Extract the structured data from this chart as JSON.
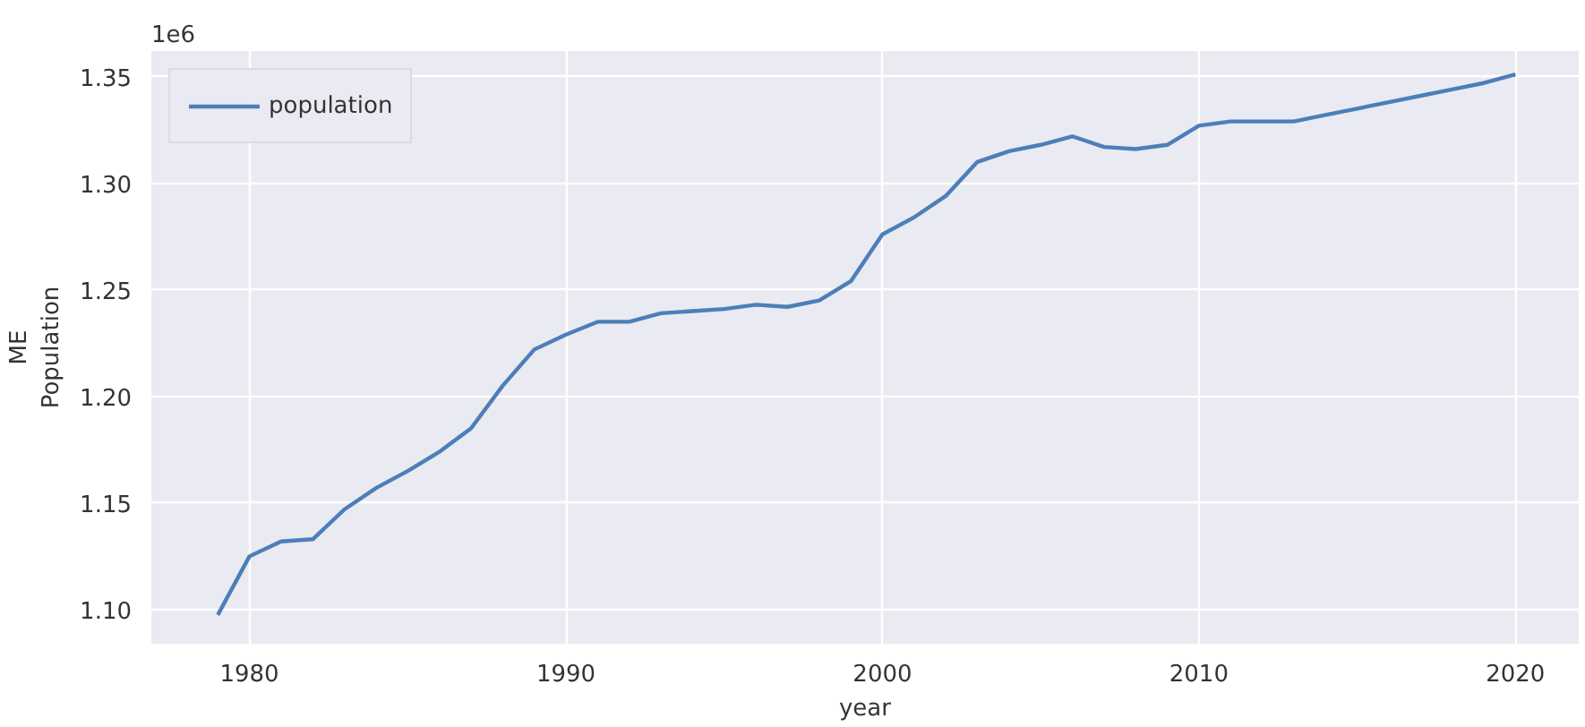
{
  "chart_data": {
    "type": "line",
    "xlabel": "year",
    "ylabel": "ME\nPopulation",
    "annotations": [
      "1e6"
    ],
    "x": [
      1979,
      1980,
      1981,
      1982,
      1983,
      1984,
      1985,
      1986,
      1987,
      1988,
      1989,
      1990,
      1991,
      1992,
      1993,
      1994,
      1995,
      1996,
      1997,
      1998,
      1999,
      2000,
      2001,
      2002,
      2003,
      2004,
      2005,
      2006,
      2007,
      2008,
      2009,
      2010,
      2011,
      2012,
      2013,
      2014,
      2015,
      2016,
      2017,
      2018,
      2019,
      2020
    ],
    "series": [
      {
        "name": "population",
        "color": "#4c7fb8",
        "values": [
          1.0975,
          1.125,
          1.132,
          1.133,
          1.147,
          1.157,
          1.165,
          1.174,
          1.185,
          1.205,
          1.222,
          1.229,
          1.235,
          1.235,
          1.239,
          1.24,
          1.241,
          1.243,
          1.242,
          1.245,
          1.254,
          1.276,
          1.284,
          1.294,
          1.31,
          1.315,
          1.318,
          1.322,
          1.317,
          1.316,
          1.318,
          1.327,
          1.329,
          1.329,
          1.329,
          1.332,
          1.335,
          1.338,
          1.341,
          1.344,
          1.347,
          1.351
        ]
      }
    ],
    "xlim": [
      1976.9,
      2022.0
    ],
    "ylim": [
      1.084,
      1.362
    ],
    "xticks": [
      1980,
      1990,
      2000,
      2010,
      2020
    ],
    "yticks": [
      {
        "value": 1.1,
        "label": "1.10"
      },
      {
        "value": 1.15,
        "label": "1.15"
      },
      {
        "value": 1.2,
        "label": "1.20"
      },
      {
        "value": 1.25,
        "label": "1.25"
      },
      {
        "value": 1.3,
        "label": "1.30"
      },
      {
        "value": 1.35,
        "label": "1.35"
      }
    ],
    "grid": true,
    "legend": "top left",
    "line_style": "solid"
  }
}
